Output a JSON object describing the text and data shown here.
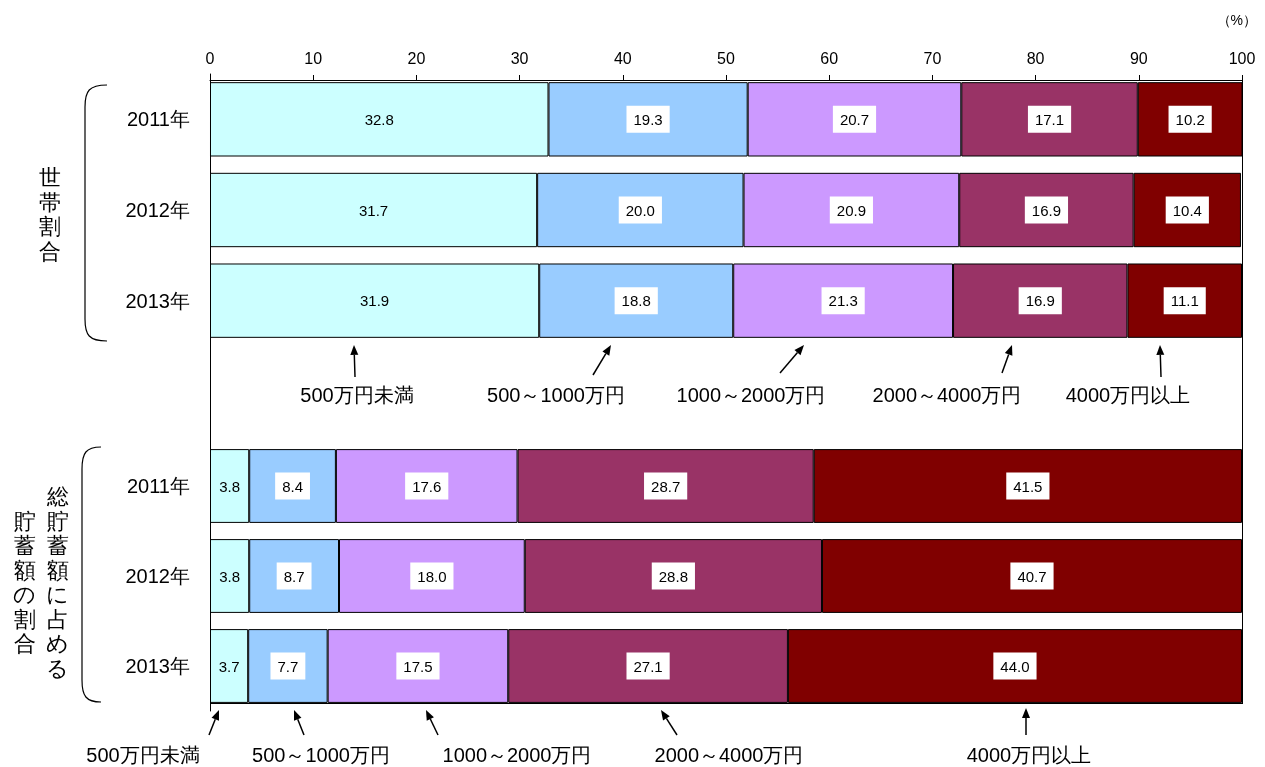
{
  "chart_data": [
    {
      "type": "bar",
      "orientation": "horizontal",
      "stacked": true,
      "xlabel": "（%）",
      "ylabel": "世帯割合",
      "categories": [
        "2011年",
        "2012年",
        "2013年"
      ],
      "series": [
        {
          "name": "500万円未満",
          "color": "#ccffff",
          "values": [
            32.8,
            31.7,
            31.9
          ],
          "value_labels": [
            "32.8",
            "31.7",
            "31.9"
          ]
        },
        {
          "name": "500～1000万円",
          "color": "#99ccff",
          "values": [
            19.3,
            20.0,
            18.8
          ],
          "value_labels": [
            "19.3",
            "20.0",
            "18.8"
          ]
        },
        {
          "name": "1000～2000万円",
          "color": "#cc99ff",
          "values": [
            20.7,
            20.9,
            21.3
          ],
          "value_labels": [
            "20.7",
            "20.9",
            "21.3"
          ]
        },
        {
          "name": "2000～4000万円",
          "color": "#993366",
          "values": [
            17.1,
            16.9,
            16.9
          ],
          "value_labels": [
            "17.1",
            "16.9",
            "16.9"
          ]
        },
        {
          "name": "4000万円以上",
          "color": "#800000",
          "values": [
            10.2,
            10.4,
            11.1
          ],
          "value_labels": [
            "10.2",
            "10.4",
            "11.1"
          ]
        }
      ],
      "xlim": [
        0,
        100
      ],
      "xticks": [
        0,
        10,
        20,
        30,
        40,
        50,
        60,
        70,
        80,
        90,
        100
      ],
      "legend": "bottom"
    },
    {
      "type": "bar",
      "orientation": "horizontal",
      "stacked": true,
      "ylabel": "総貯蓄額に占める貯蓄額の割合",
      "categories": [
        "2011年",
        "2012年",
        "2013年"
      ],
      "series": [
        {
          "name": "500万円未満",
          "color": "#ccffff",
          "values": [
            3.8,
            3.8,
            3.7
          ],
          "value_labels": [
            "3.8",
            "3.8",
            "3.7"
          ]
        },
        {
          "name": "500～1000万円",
          "color": "#99ccff",
          "values": [
            8.4,
            8.7,
            7.7
          ],
          "value_labels": [
            "8.4",
            "8.7",
            "7.7"
          ]
        },
        {
          "name": "1000～2000万円",
          "color": "#cc99ff",
          "values": [
            17.6,
            18.0,
            17.5
          ],
          "value_labels": [
            "17.6",
            "18.0",
            "17.5"
          ]
        },
        {
          "name": "2000～4000万円",
          "color": "#993366",
          "values": [
            28.7,
            28.8,
            27.1
          ],
          "value_labels": [
            "28.7",
            "28.8",
            "27.1"
          ]
        },
        {
          "name": "4000万円以上",
          "color": "#800000",
          "values": [
            41.5,
            40.7,
            44.0
          ],
          "value_labels": [
            "41.5",
            "40.7",
            "44.0"
          ]
        }
      ],
      "xlim": [
        0,
        100
      ],
      "tick_labels": "y",
      "legend": "bottom"
    }
  ]
}
